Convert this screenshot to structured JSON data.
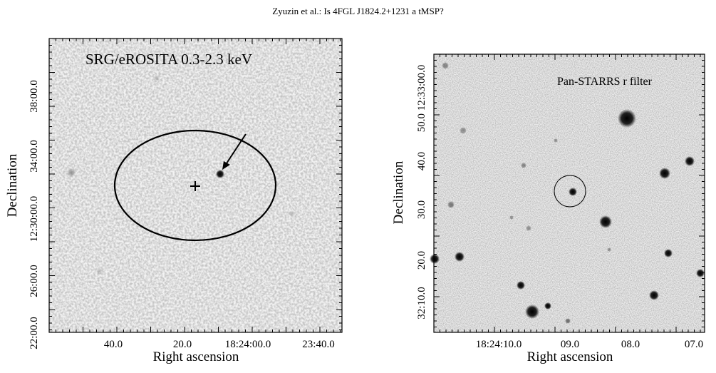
{
  "header": {
    "running_title": "Zyuzin et al.: Is 4FGL J1824.2+1231 a tMSP?"
  },
  "left_panel": {
    "label": "SRG/eROSITA 0.3-2.3 keV",
    "xlabel": "Right ascension",
    "ylabel": "Declination",
    "xticks": [
      "40.0",
      "20.0",
      "18:24:00.0",
      "23:40.0"
    ],
    "yticks": [
      "22:00.0",
      "26:00.0",
      "12:30:00.0",
      "34:00.0",
      "38:00.0"
    ]
  },
  "right_panel": {
    "label": "Pan-STARRS r filter",
    "xlabel": "Right ascension",
    "ylabel": "Declination",
    "xticks": [
      "18:24:10.0",
      "09.0",
      "08.0",
      "07.0"
    ],
    "yticks": [
      "32:10.0",
      "20.0",
      "30.0",
      "40.0",
      "50.0 12:33:00.0"
    ]
  }
}
